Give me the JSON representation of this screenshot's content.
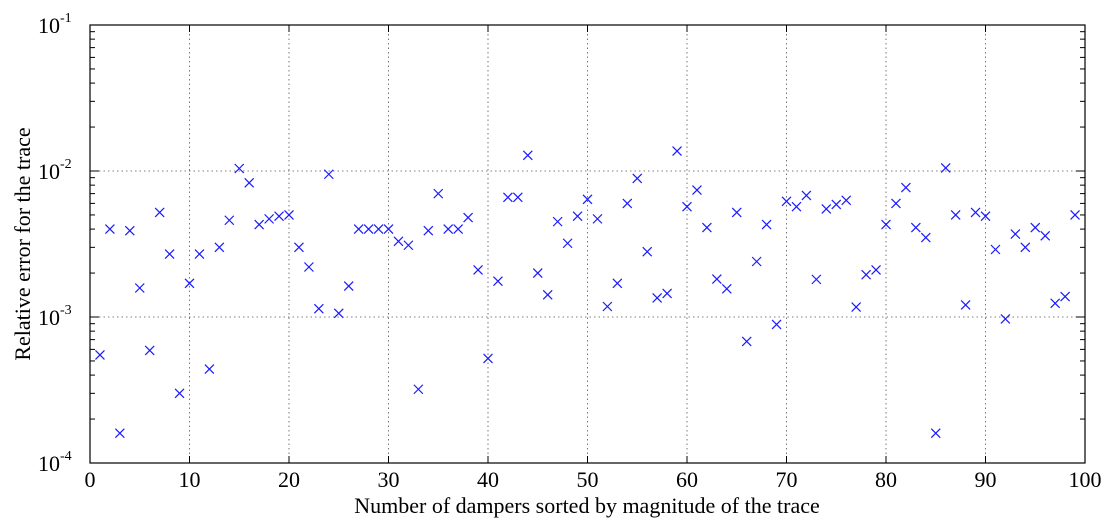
{
  "chart_data": {
    "type": "scatter",
    "xlabel": "Number of dampers  sorted by magnitude of the trace",
    "ylabel": "Relative error for the trace",
    "xlim": [
      0,
      100
    ],
    "ylim": [
      0.0001,
      0.1
    ],
    "yscale": "log",
    "grid": true,
    "x_ticks": [
      "0",
      "10",
      "20",
      "30",
      "40",
      "50",
      "60",
      "70",
      "80",
      "90",
      "100"
    ],
    "y_ticks": [
      {
        "base": "10",
        "exp": "-4"
      },
      {
        "base": "10",
        "exp": "-3"
      },
      {
        "base": "10",
        "exp": "-2"
      },
      {
        "base": "10",
        "exp": "-1"
      }
    ],
    "marker": "x",
    "color": "#1a1aff",
    "x": [
      1,
      2,
      3,
      4,
      5,
      6,
      7,
      8,
      9,
      10,
      11,
      12,
      13,
      14,
      15,
      16,
      17,
      18,
      19,
      20,
      21,
      22,
      23,
      24,
      25,
      26,
      27,
      28,
      29,
      30,
      31,
      32,
      33,
      34,
      35,
      36,
      37,
      38,
      39,
      40,
      41,
      42,
      43,
      44,
      45,
      46,
      47,
      48,
      49,
      50,
      51,
      52,
      53,
      54,
      55,
      56,
      57,
      58,
      59,
      60,
      61,
      62,
      63,
      64,
      65,
      66,
      67,
      68,
      69,
      70,
      71,
      72,
      73,
      74,
      75,
      76,
      77,
      78,
      79,
      80,
      81,
      82,
      83,
      84,
      85,
      86,
      87,
      88,
      89,
      90,
      91,
      92,
      93,
      94,
      95,
      96,
      97,
      98,
      99
    ],
    "y": [
      0.00055,
      0.004,
      0.00016,
      0.0039,
      0.00158,
      0.00059,
      0.0052,
      0.0027,
      0.0003,
      0.0017,
      0.0027,
      0.00044,
      0.003,
      0.0046,
      0.0104,
      0.0083,
      0.0043,
      0.0047,
      0.0049,
      0.005,
      0.003,
      0.0022,
      0.00114,
      0.0095,
      0.00106,
      0.00163,
      0.004,
      0.004,
      0.004,
      0.004,
      0.0033,
      0.0031,
      0.00032,
      0.0039,
      0.007,
      0.004,
      0.004,
      0.0048,
      0.0021,
      0.00052,
      0.00176,
      0.0066,
      0.0066,
      0.0128,
      0.002,
      0.00142,
      0.0045,
      0.0032,
      0.0049,
      0.0064,
      0.0047,
      0.00118,
      0.0017,
      0.006,
      0.0089,
      0.0028,
      0.00135,
      0.00145,
      0.0137,
      0.0057,
      0.0074,
      0.0041,
      0.00182,
      0.00156,
      0.0052,
      0.00068,
      0.0024,
      0.0043,
      0.00089,
      0.0062,
      0.0057,
      0.0068,
      0.00181,
      0.0055,
      0.0059,
      0.0063,
      0.00117,
      0.00195,
      0.0021,
      0.0043,
      0.006,
      0.0077,
      0.0041,
      0.0035,
      0.00016,
      0.0105,
      0.005,
      0.00121,
      0.0052,
      0.0049,
      0.0029,
      0.00097,
      0.0037,
      0.003,
      0.0041,
      0.0036,
      0.00124,
      0.00138,
      0.005
    ]
  }
}
